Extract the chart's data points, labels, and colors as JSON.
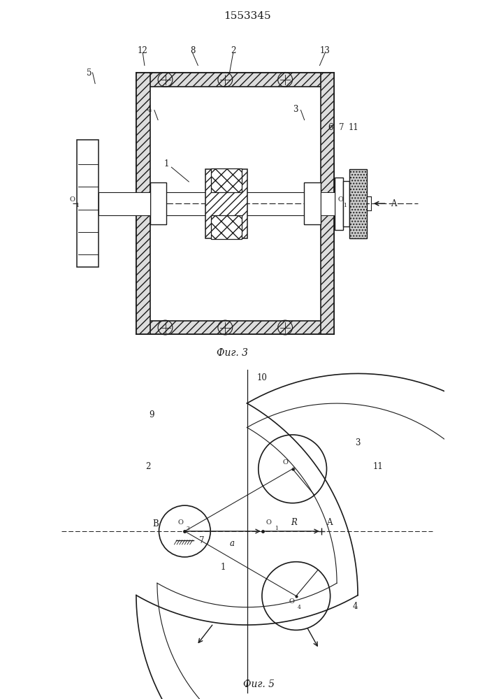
{
  "title": "1553345",
  "fig3_label": "Фиг. 3",
  "fig5_label": "Фиг. 5",
  "bg_color": "#ffffff",
  "line_color": "#1a1a1a"
}
